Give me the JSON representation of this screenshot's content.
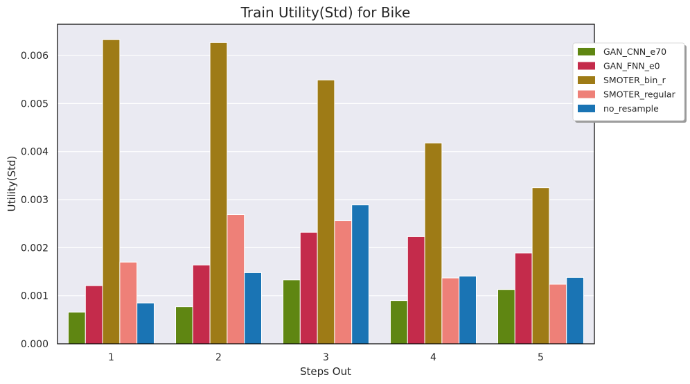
{
  "chart_data": {
    "type": "bar",
    "title": "Train Utility(Std) for Bike",
    "xlabel": "Steps Out",
    "ylabel": "Utility(Std)",
    "categories": [
      "1",
      "2",
      "3",
      "4",
      "5"
    ],
    "ylim": [
      0,
      0.00665
    ],
    "yticks": [
      0.0,
      0.001,
      0.002,
      0.003,
      0.004,
      0.005,
      0.006
    ],
    "ytick_labels": [
      "0.000",
      "0.001",
      "0.002",
      "0.003",
      "0.004",
      "0.005",
      "0.006"
    ],
    "grid": true,
    "legend_position": "top-right",
    "series": [
      {
        "name": "GAN_CNN_e70",
        "color": "#5f8612",
        "values": [
          0.00066,
          0.00077,
          0.00133,
          0.0009,
          0.00113
        ]
      },
      {
        "name": "GAN_FNN_e0",
        "color": "#c42b4b",
        "values": [
          0.00121,
          0.00164,
          0.00232,
          0.00223,
          0.00189
        ]
      },
      {
        "name": "SMOTER_bin_r",
        "color": "#9e7b16",
        "values": [
          0.00633,
          0.00627,
          0.00549,
          0.00418,
          0.00325
        ]
      },
      {
        "name": "SMOTER_regular",
        "color": "#ee8078",
        "values": [
          0.0017,
          0.00269,
          0.00256,
          0.00137,
          0.00124
        ]
      },
      {
        "name": "no_resample",
        "color": "#1a74b4",
        "values": [
          0.00085,
          0.00148,
          0.00289,
          0.00141,
          0.00138
        ]
      }
    ]
  }
}
